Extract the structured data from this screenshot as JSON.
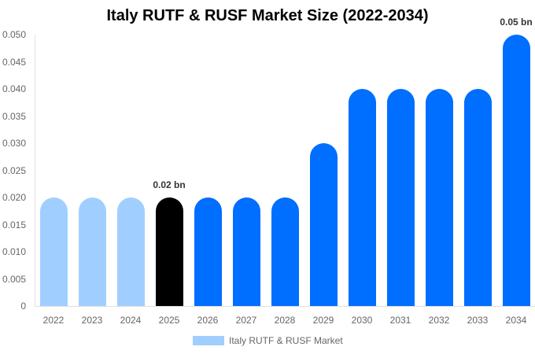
{
  "chart_data": {
    "type": "bar",
    "title": "Italy RUTF & RUSF Market Size (2022-2034)",
    "xlabel": "",
    "ylabel": "",
    "ylim": [
      0,
      0.05
    ],
    "yticks": [
      "0",
      "0.005",
      "0.010",
      "0.015",
      "0.020",
      "0.025",
      "0.030",
      "0.035",
      "0.040",
      "0.045",
      "0.050"
    ],
    "categories": [
      "2022",
      "2023",
      "2024",
      "2025",
      "2026",
      "2027",
      "2028",
      "2029",
      "2030",
      "2031",
      "2032",
      "2033",
      "2034"
    ],
    "series": [
      {
        "name": "Italy RUTF & RUSF Market",
        "values": [
          0.02,
          0.02,
          0.02,
          0.02,
          0.02,
          0.02,
          0.02,
          0.03,
          0.04,
          0.04,
          0.04,
          0.04,
          0.05
        ]
      }
    ],
    "bar_colors": [
      "#a0cfff",
      "#a0cfff",
      "#a0cfff",
      "#000000",
      "#006eff",
      "#006eff",
      "#006eff",
      "#006eff",
      "#006eff",
      "#006eff",
      "#006eff",
      "#006eff",
      "#006eff"
    ],
    "annotations": [
      {
        "category": "2025",
        "text": "0.02 bn"
      },
      {
        "category": "2034",
        "text": "0.05 bn"
      }
    ],
    "legend": {
      "position": "bottom",
      "entries": [
        {
          "label": "Italy RUTF & RUSF Market",
          "color": "#a0cfff"
        }
      ]
    },
    "grid": false
  }
}
